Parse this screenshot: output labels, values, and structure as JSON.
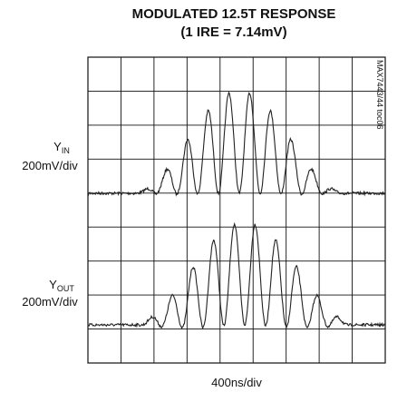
{
  "chart_data": {
    "type": "scope",
    "title": "MODULATED 12.5T RESPONSE",
    "subtitle": "(1 IRE = 7.14mV)",
    "traces": [
      {
        "name": "Y",
        "name_sub": "IN",
        "scale": "200mV/div"
      },
      {
        "name": "Y",
        "name_sub": "OUT",
        "scale": "200mV/div"
      }
    ],
    "x_label": "400ns/div",
    "side_label": "MAX7443/44 toc06"
  }
}
